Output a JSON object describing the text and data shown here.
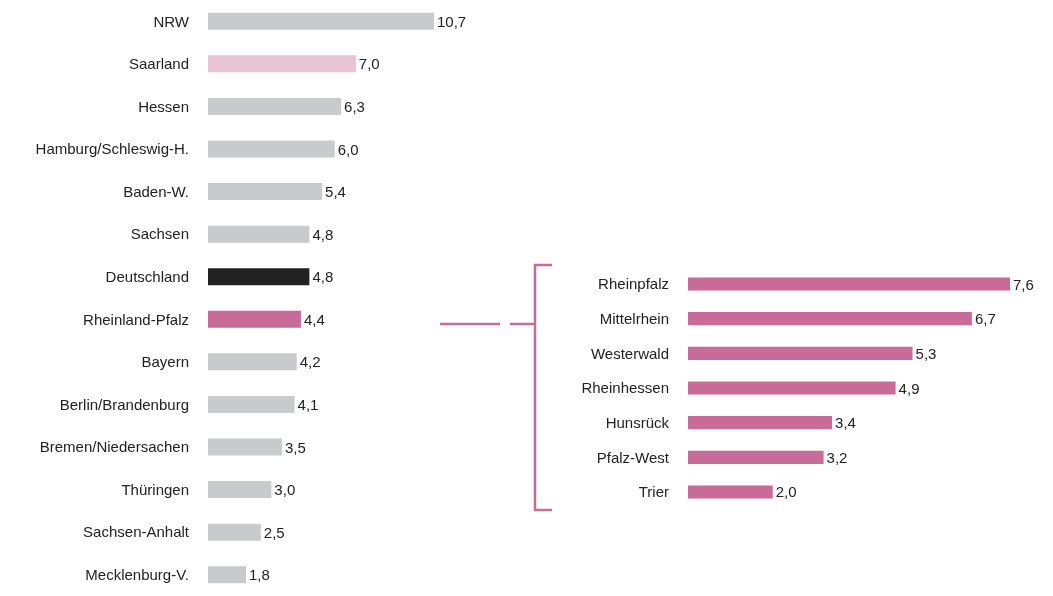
{
  "chart_data": [
    {
      "type": "bar",
      "orientation": "horizontal",
      "categories": [
        "NRW",
        "Saarland",
        "Hessen",
        "Hamburg/Schleswig-H.",
        "Baden-W.",
        "Sachsen",
        "Deutschland",
        "Rheinland-Pfalz",
        "Bayern",
        "Berlin/Brandenburg",
        "Bremen/Niedersachen",
        "Thüringen",
        "Sachsen-Anhalt",
        "Mecklenburg-V."
      ],
      "values": [
        10.7,
        7.0,
        6.3,
        6.0,
        5.4,
        4.8,
        4.8,
        4.4,
        4.2,
        4.1,
        3.5,
        3.0,
        2.5,
        1.8
      ],
      "value_labels": [
        "10,7",
        "7,0",
        "6,3",
        "6,0",
        "5,4",
        "4,8",
        "4,8",
        "4,4",
        "4,2",
        "4,1",
        "3,5",
        "3,0",
        "2,5",
        "1,8"
      ],
      "colors": [
        "#c8cacb",
        "#e8c3d4",
        "#c8cacb",
        "#c8cacb",
        "#c8cacb",
        "#c8cacb",
        "#222222",
        "#c96b98",
        "#c8cacb",
        "#c8cacb",
        "#c8cacb",
        "#c8cacb",
        "#c8cacb",
        "#c8cacb"
      ]
    },
    {
      "type": "bar",
      "orientation": "horizontal",
      "categories": [
        "Rheinpfalz",
        "Mittelrhein",
        "Westerwald",
        "Rheinhessen",
        "Hunsrück",
        "Pfalz-West",
        "Trier"
      ],
      "values": [
        7.6,
        6.7,
        5.3,
        4.9,
        3.4,
        3.2,
        2.0
      ],
      "value_labels": [
        "7,6",
        "6,7",
        "5,3",
        "4,9",
        "3,4",
        "3,2",
        "2,0"
      ],
      "colors": [
        "#c96b98",
        "#c96b98",
        "#c96b98",
        "#c96b98",
        "#c96b98",
        "#c96b98",
        "#c96b98"
      ]
    }
  ]
}
